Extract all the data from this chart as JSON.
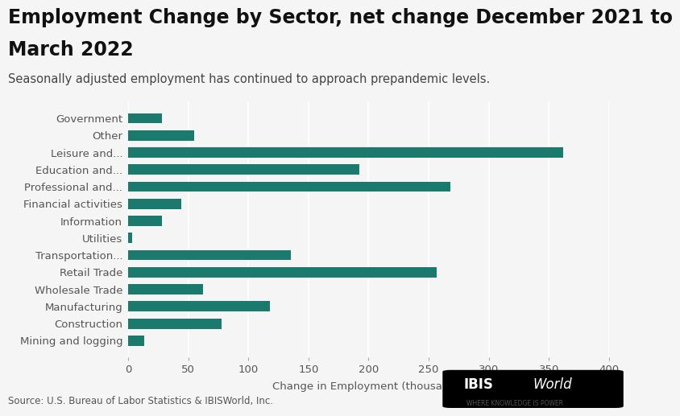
{
  "title_line1": "Employment Change by Sector, net change December 2021 to",
  "title_line2": "March 2022",
  "subtitle": "Seasonally adjusted employment has continued to approach prepandemic levels.",
  "xlabel": "Change in Employment (thousands)",
  "source": "Source: U.S. Bureau of Labor Statistics & IBISWorld, Inc.",
  "categories": [
    "Government",
    "Other",
    "Leisure and...",
    "Education and...",
    "Professional and...",
    "Financial activities",
    "Information",
    "Utilities",
    "Transportation...",
    "Retail Trade",
    "Wholesale Trade",
    "Manufacturing",
    "Construction",
    "Mining and logging"
  ],
  "values": [
    28,
    55,
    362,
    192,
    268,
    44,
    28,
    3,
    135,
    257,
    62,
    118,
    78,
    13
  ],
  "bar_color": "#1a7a6e",
  "background_color": "#f5f5f5",
  "xlim": [
    0,
    400
  ],
  "xticks": [
    0,
    50,
    100,
    150,
    200,
    250,
    300,
    350,
    400
  ],
  "title_fontsize": 17,
  "subtitle_fontsize": 10.5,
  "label_fontsize": 9.5,
  "tick_fontsize": 9.5,
  "source_fontsize": 8.5
}
